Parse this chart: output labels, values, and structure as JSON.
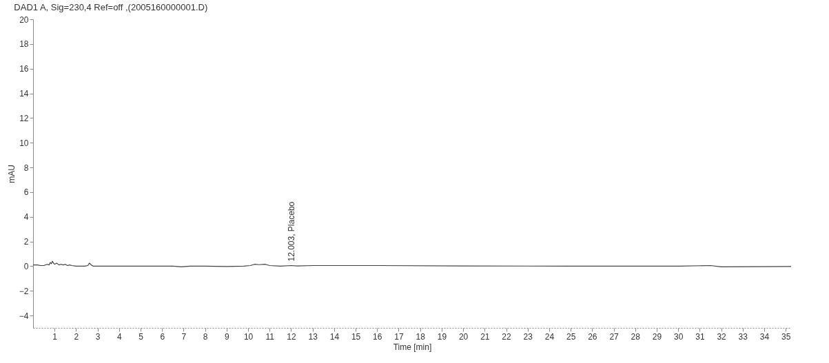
{
  "chart_data": {
    "type": "line",
    "title": "DAD1 A, Sig=230,4 Ref=off ,(2005160000001.D)",
    "xlabel": "Time [min]",
    "ylabel": "mAU",
    "x": [
      0,
      0.2,
      0.35,
      0.5,
      0.65,
      0.75,
      0.8,
      0.85,
      0.9,
      0.95,
      1.0,
      1.1,
      1.2,
      1.3,
      1.4,
      1.5,
      1.6,
      1.7,
      1.8,
      2.0,
      2.4,
      2.55,
      2.62,
      2.7,
      2.8,
      4.0,
      6.0,
      6.5,
      6.9,
      7.3,
      8.0,
      9.0,
      9.8,
      10.1,
      10.3,
      10.5,
      10.8,
      11.0,
      11.5,
      12.0,
      12.3,
      13.0,
      16.0,
      20.0,
      25.0,
      28.0,
      30.0,
      31.5,
      32.0,
      35.25
    ],
    "series": [
      {
        "color": "#404040",
        "values": [
          0.1,
          0.1,
          0.05,
          0.05,
          0.15,
          0.1,
          0.3,
          0.2,
          0.4,
          0.25,
          0.15,
          0.25,
          0.1,
          0.15,
          0.1,
          0.15,
          0.05,
          0.1,
          0.05,
          0.0,
          0.0,
          0.05,
          0.25,
          0.1,
          0.0,
          0.0,
          0.0,
          0.0,
          -0.05,
          0.0,
          0.0,
          -0.03,
          0.0,
          0.05,
          0.15,
          0.12,
          0.15,
          0.05,
          0.0,
          0.05,
          0.02,
          0.05,
          0.05,
          0.02,
          0.0,
          0.0,
          0.0,
          0.05,
          -0.05,
          -0.03
        ]
      }
    ],
    "xlim": [
      0,
      35.25
    ],
    "xticks": [
      1,
      2,
      3,
      4,
      5,
      6,
      7,
      8,
      9,
      10,
      11,
      12,
      13,
      14,
      15,
      16,
      17,
      18,
      19,
      20,
      21,
      22,
      23,
      24,
      25,
      26,
      27,
      28,
      29,
      30,
      31,
      32,
      33,
      34,
      35
    ],
    "ylim": [
      -5,
      20
    ],
    "yticks": [
      -4,
      -2,
      0,
      2,
      4,
      6,
      8,
      10,
      12,
      14,
      16,
      18,
      20
    ],
    "grid": false,
    "marker": "none",
    "line_style": "solid",
    "annotations": [
      {
        "text": "12.003, Placebo",
        "x": 12.003,
        "y": 0.05
      }
    ]
  }
}
